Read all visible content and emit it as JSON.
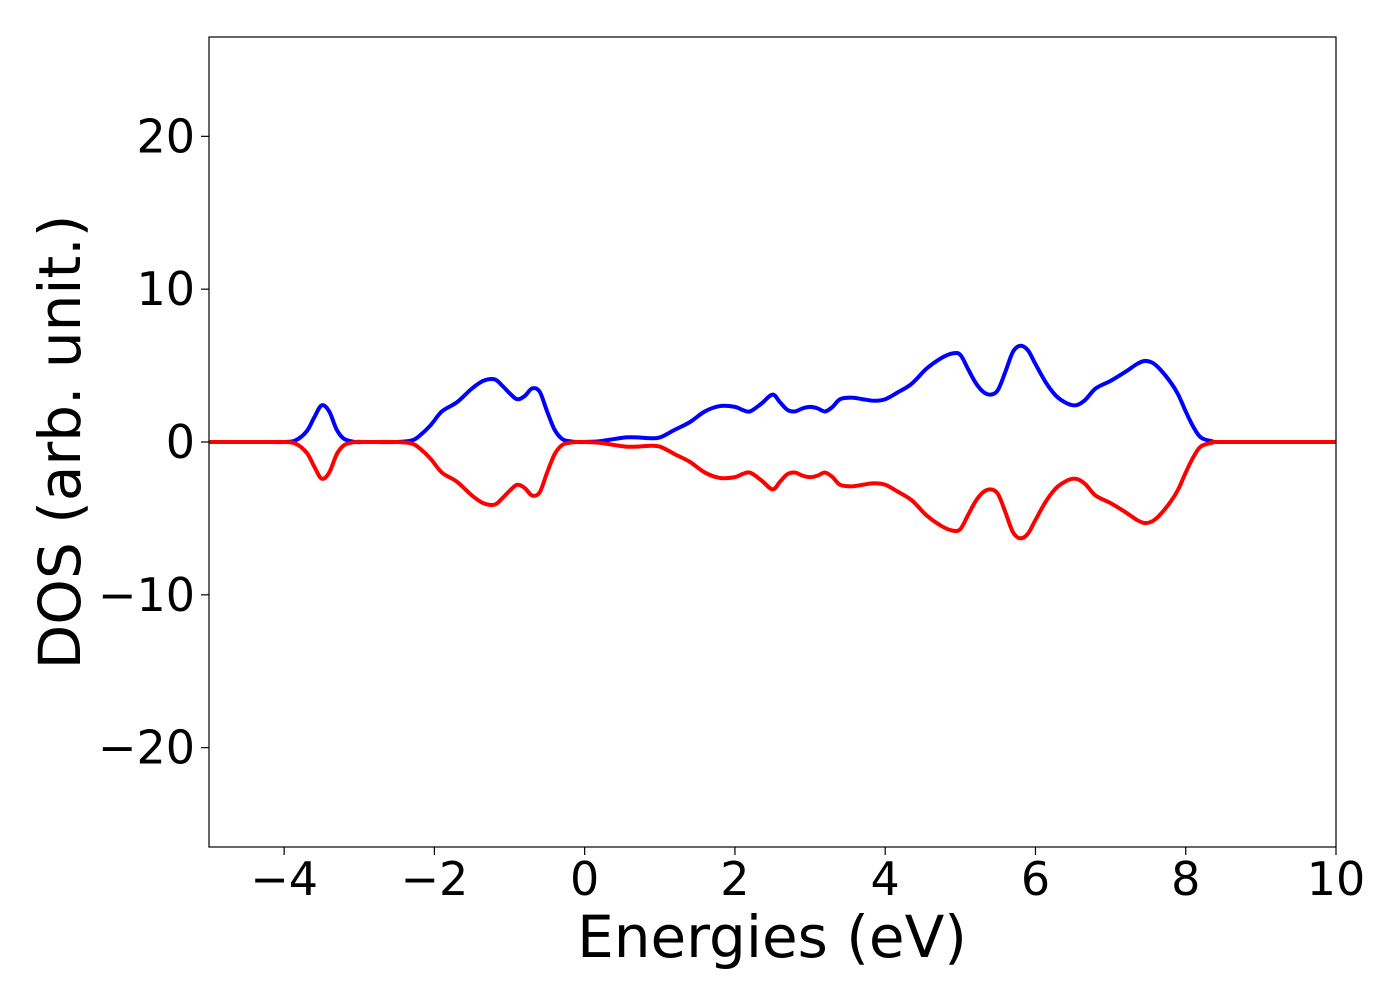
{
  "chart_data": {
    "type": "line",
    "title": "",
    "xlabel": "Energies (eV)",
    "ylabel": "DOS (arb. unit.)",
    "xlim": [
      -5,
      10
    ],
    "ylim": [
      -26.5,
      26.5
    ],
    "xticks": [
      -4,
      -2,
      0,
      2,
      4,
      6,
      8,
      10
    ],
    "xtick_labels": [
      "−4",
      "−2",
      "0",
      "2",
      "4",
      "6",
      "8",
      "10"
    ],
    "yticks": [
      -20,
      -10,
      0,
      10,
      20
    ],
    "ytick_labels": [
      "−20",
      "−10",
      "0",
      "10",
      "20"
    ],
    "grid": false,
    "series": [
      {
        "color": "#0000ff",
        "x": [
          -5,
          -4.2,
          -4.0,
          -3.85,
          -3.7,
          -3.6,
          -3.5,
          -3.4,
          -3.3,
          -3.2,
          -3.05,
          -2.9,
          -2.5,
          -2.3,
          -2.2,
          -2.05,
          -1.9,
          -1.7,
          -1.5,
          -1.35,
          -1.2,
          -1.1,
          -1.0,
          -0.9,
          -0.8,
          -0.7,
          -0.6,
          -0.5,
          -0.4,
          -0.3,
          -0.2,
          -0.1,
          0.0,
          0.2,
          0.4,
          0.55,
          0.7,
          0.85,
          1.0,
          1.2,
          1.4,
          1.6,
          1.8,
          2.0,
          2.1,
          2.2,
          2.35,
          2.5,
          2.6,
          2.7,
          2.8,
          2.9,
          3.0,
          3.1,
          3.2,
          3.3,
          3.4,
          3.55,
          3.7,
          3.85,
          4.0,
          4.15,
          4.35,
          4.55,
          4.75,
          4.9,
          5.0,
          5.1,
          5.2,
          5.3,
          5.4,
          5.5,
          5.6,
          5.7,
          5.8,
          5.9,
          6.0,
          6.15,
          6.3,
          6.5,
          6.65,
          6.8,
          7.0,
          7.2,
          7.35,
          7.45,
          7.55,
          7.65,
          7.8,
          7.9,
          8.0,
          8.1,
          8.2,
          8.35,
          8.5,
          10
        ],
        "values": [
          0,
          0,
          0,
          0.1,
          0.7,
          1.6,
          2.4,
          2.0,
          0.8,
          0.2,
          0.0,
          0,
          0,
          0.1,
          0.4,
          1.1,
          2.0,
          2.6,
          3.5,
          4.0,
          4.1,
          3.7,
          3.2,
          2.8,
          3.0,
          3.5,
          3.3,
          2.0,
          0.8,
          0.2,
          0.05,
          0.0,
          0.0,
          0.05,
          0.2,
          0.3,
          0.3,
          0.25,
          0.3,
          0.8,
          1.3,
          2.0,
          2.35,
          2.3,
          2.1,
          2.0,
          2.5,
          3.1,
          2.6,
          2.1,
          2.0,
          2.2,
          2.3,
          2.2,
          2.0,
          2.3,
          2.8,
          2.9,
          2.8,
          2.7,
          2.8,
          3.2,
          3.8,
          4.8,
          5.5,
          5.8,
          5.7,
          4.8,
          3.9,
          3.3,
          3.1,
          3.4,
          4.6,
          5.9,
          6.3,
          6.0,
          5.1,
          3.8,
          2.9,
          2.4,
          2.7,
          3.5,
          4.0,
          4.6,
          5.1,
          5.3,
          5.2,
          4.8,
          3.9,
          3.1,
          2.0,
          1.0,
          0.3,
          0.05,
          0.0,
          0
        ]
      },
      {
        "color": "#ff0000",
        "x": [
          -5,
          -4.2,
          -4.0,
          -3.85,
          -3.7,
          -3.6,
          -3.5,
          -3.4,
          -3.3,
          -3.2,
          -3.05,
          -2.9,
          -2.5,
          -2.3,
          -2.2,
          -2.05,
          -1.9,
          -1.7,
          -1.5,
          -1.35,
          -1.2,
          -1.1,
          -1.0,
          -0.9,
          -0.8,
          -0.7,
          -0.6,
          -0.5,
          -0.4,
          -0.3,
          -0.2,
          -0.1,
          0.0,
          0.2,
          0.4,
          0.55,
          0.7,
          0.85,
          1.0,
          1.2,
          1.4,
          1.6,
          1.8,
          2.0,
          2.1,
          2.2,
          2.35,
          2.5,
          2.6,
          2.7,
          2.8,
          2.9,
          3.0,
          3.1,
          3.2,
          3.3,
          3.4,
          3.55,
          3.7,
          3.85,
          4.0,
          4.15,
          4.35,
          4.55,
          4.75,
          4.9,
          5.0,
          5.1,
          5.2,
          5.3,
          5.4,
          5.5,
          5.6,
          5.7,
          5.8,
          5.9,
          6.0,
          6.15,
          6.3,
          6.5,
          6.65,
          6.8,
          7.0,
          7.2,
          7.35,
          7.45,
          7.55,
          7.65,
          7.8,
          7.9,
          8.0,
          8.1,
          8.2,
          8.35,
          8.5,
          10
        ],
        "values": [
          0,
          0,
          0,
          -0.1,
          -0.7,
          -1.6,
          -2.4,
          -2.0,
          -0.8,
          -0.2,
          -0.0,
          0,
          0,
          -0.1,
          -0.4,
          -1.1,
          -2.0,
          -2.6,
          -3.5,
          -4.0,
          -4.1,
          -3.7,
          -3.2,
          -2.8,
          -3.0,
          -3.5,
          -3.3,
          -2.0,
          -0.8,
          -0.2,
          -0.05,
          -0.0,
          -0.0,
          -0.05,
          -0.2,
          -0.3,
          -0.3,
          -0.25,
          -0.3,
          -0.8,
          -1.3,
          -2.0,
          -2.35,
          -2.3,
          -2.1,
          -2.0,
          -2.5,
          -3.1,
          -2.6,
          -2.1,
          -2.0,
          -2.2,
          -2.3,
          -2.2,
          -2.0,
          -2.3,
          -2.8,
          -2.9,
          -2.8,
          -2.7,
          -2.8,
          -3.2,
          -3.8,
          -4.8,
          -5.5,
          -5.8,
          -5.7,
          -4.8,
          -3.9,
          -3.3,
          -3.1,
          -3.4,
          -4.6,
          -5.9,
          -6.3,
          -6.0,
          -5.1,
          -3.8,
          -2.9,
          -2.4,
          -2.7,
          -3.5,
          -4.0,
          -4.6,
          -5.1,
          -5.3,
          -5.2,
          -4.8,
          -3.9,
          -3.1,
          -2.0,
          -1.0,
          -0.3,
          -0.05,
          -0.0,
          0
        ]
      }
    ]
  }
}
